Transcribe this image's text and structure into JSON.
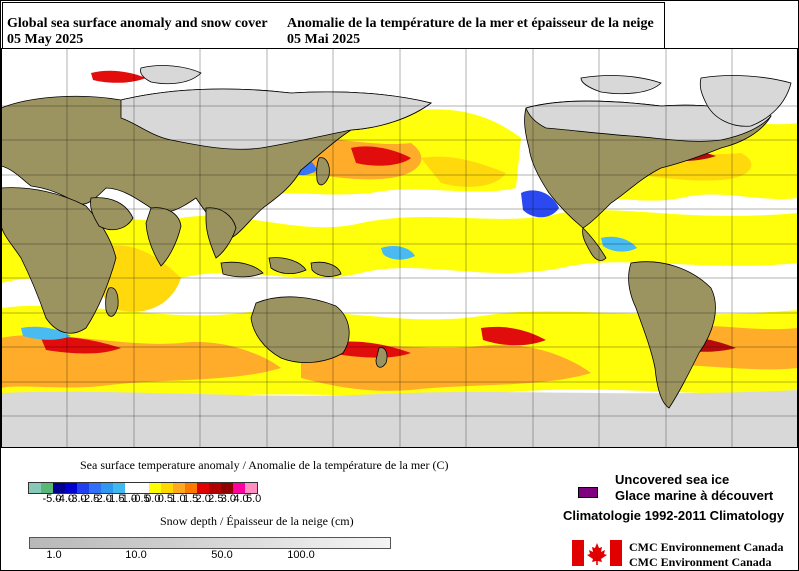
{
  "title": {
    "en_line1": "Global sea surface anomaly and snow cover",
    "en_line2": "05 May 2025",
    "fr_line1": "Anomalie de la température de la mer et épaisseur de la neige",
    "fr_line2": "05 Mai 2025"
  },
  "sst_legend": {
    "title": "Sea surface temperature anomaly / Anomalie de la température de la mer (C)",
    "colors": [
      "#88c8b8",
      "#58b878",
      "#000090",
      "#0000d0",
      "#2040f0",
      "#3070f8",
      "#3098f0",
      "#40b8f0",
      "#ffffff",
      "#ffffff",
      "#ffff00",
      "#ffd800",
      "#ffa820",
      "#ff7800",
      "#e00000",
      "#b00000",
      "#900000",
      "#ff00a0",
      "#ff90c0"
    ],
    "labels": [
      "-5.0",
      "-4.0",
      "-3.0",
      "-2.5",
      "-2.0",
      "-1.5",
      "-1.0",
      "-0.5",
      "0.0",
      "0.5",
      "1.0",
      "1.5",
      "2.0",
      "2.5",
      "3.0",
      "4.0",
      "5.0"
    ]
  },
  "snow_legend": {
    "title": "Snow depth / Épaisseur de la neige (cm)",
    "labels": [
      "1.0",
      "10.0",
      "50.0",
      "100.0"
    ]
  },
  "ice": {
    "line1": "Uncovered sea ice",
    "line2": "Glace marine à découvert",
    "color": "#800080"
  },
  "climatology": "Climatologie 1992-2011 Climatology",
  "agency": {
    "line1": "CMC  Environnement  Canada",
    "line2": "CMC  Environment  Canada"
  },
  "colors": {
    "land": "#9c9460",
    "ocean_neutral": "#ffffff",
    "snow": "#d8d8d8",
    "grid": "#000000"
  }
}
